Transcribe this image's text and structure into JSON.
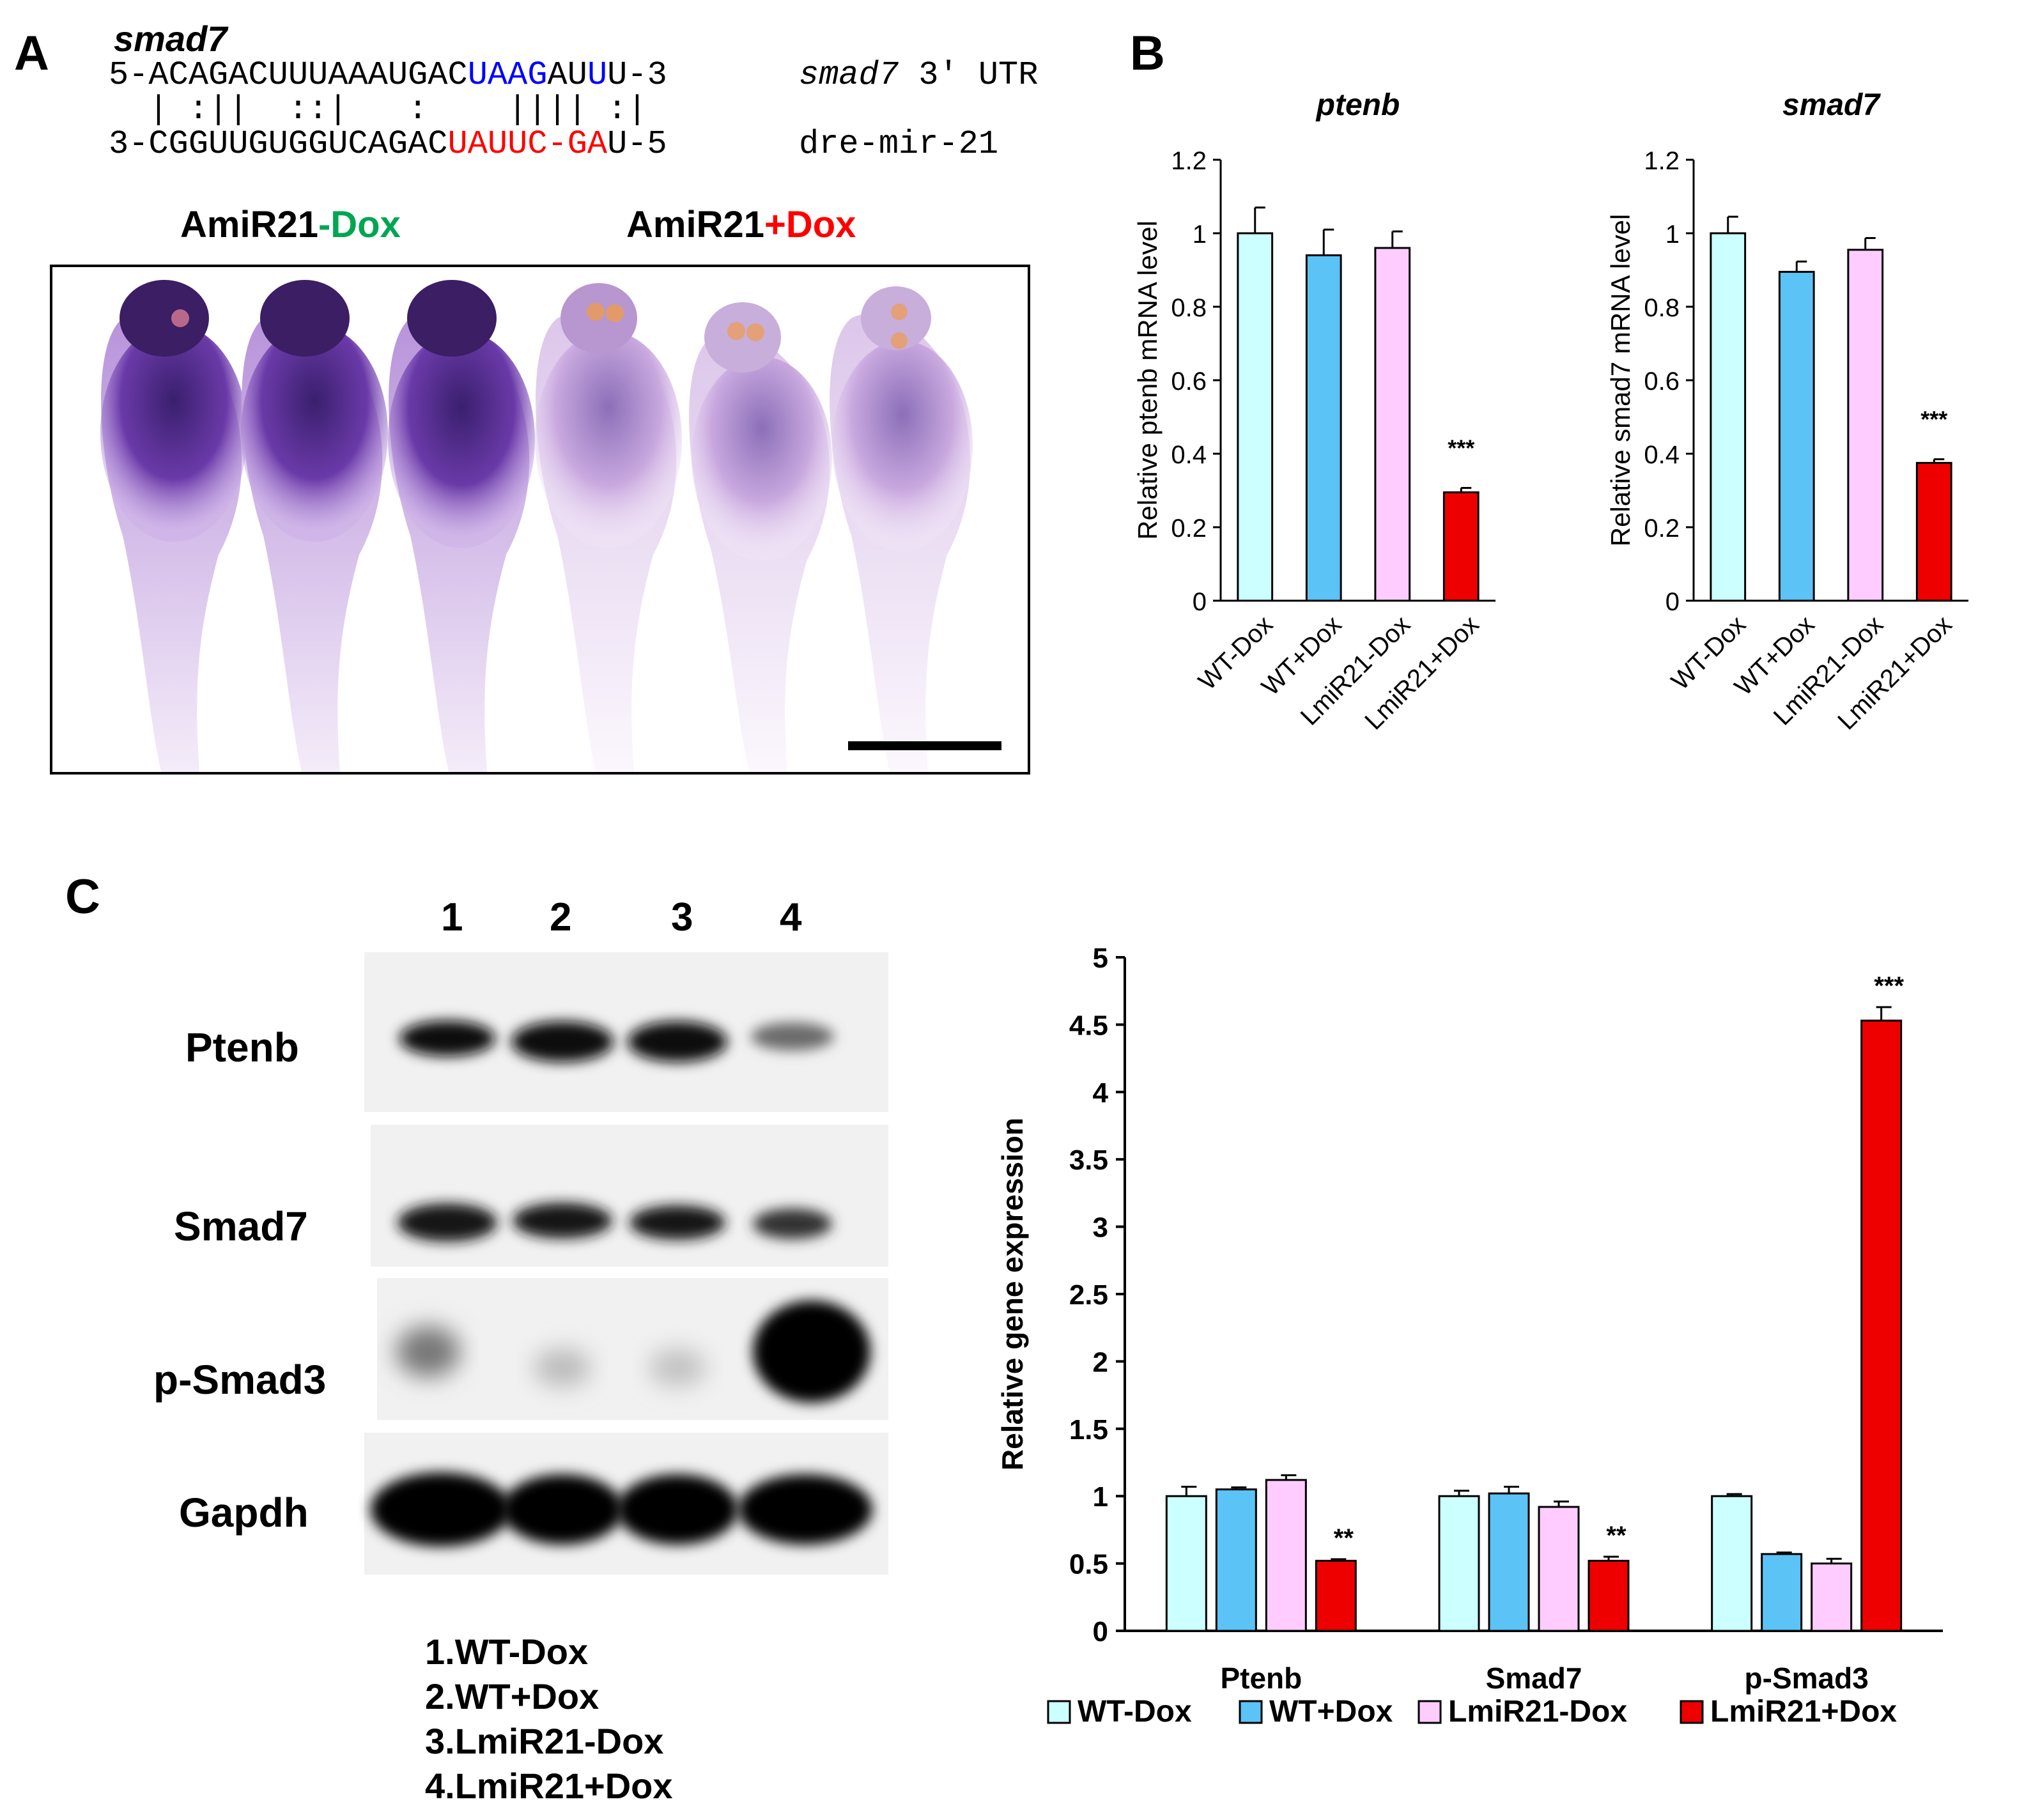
{
  "colors": {
    "wt_minus": "#ccffff",
    "wt_plus": "#5bc3f5",
    "lmir_minus": "#ffccff",
    "lmir_plus": "#ee0000",
    "target_blue": "#0000ff",
    "mir_red": "#ff0000",
    "minus_green": "#00a651"
  },
  "panelA": {
    "letter": "A",
    "gene_name": "smad7",
    "utr_seq": [
      "5-ACAGACUUUAAAUGAC",
      "UAAG",
      "AU",
      "U",
      "U-3"
    ],
    "utr_label_italic": "smad7",
    "utr_label_rest": " 3' UTR",
    "pairing": "  | :||  ::|   :    |||| :|",
    "mir_seq": [
      "3-CGGUUGUGGUCAGAC",
      "UAUUC-GA",
      "U-5"
    ],
    "mir_label": "dre-mir-21",
    "group_minus": [
      "AmiR21",
      "-Dox"
    ],
    "group_plus": [
      "AmiR21",
      "+Dox"
    ]
  },
  "panelB": {
    "letter": "B"
  },
  "panelC": {
    "letter": "C",
    "lane_numbers": [
      "1",
      "2",
      "3",
      "4"
    ],
    "blot_labels": [
      "Ptenb",
      "Smad7",
      "p-Smad3",
      "Gapdh"
    ],
    "lane_legend": [
      "1.WT-Dox",
      "2.WT+Dox",
      "3.LmiR21-Dox",
      "4.LmiR21+Dox"
    ]
  },
  "chart_data": [
    {
      "type": "bar",
      "title": "ptenb",
      "ylabel": "Relative ptenb mRNA level",
      "ylim": [
        0,
        1.2
      ],
      "yticks": [
        "0",
        "0.2",
        "0.4",
        "0.6",
        "0.8",
        "1",
        "1.2"
      ],
      "categories": [
        "WT-Dox",
        "WT+Dox",
        "LmiR21-Dox",
        "LmiR21+Dox"
      ],
      "values": [
        1.0,
        0.94,
        0.96,
        0.295
      ],
      "errors": [
        0.07,
        0.07,
        0.045,
        0.012
      ],
      "annotations": [
        "",
        "",
        "",
        "***"
      ]
    },
    {
      "type": "bar",
      "title": "smad7",
      "ylabel": "Relative smad7 mRNA level",
      "ylim": [
        0,
        1.2
      ],
      "yticks": [
        "0",
        "0.2",
        "0.4",
        "0.6",
        "0.8",
        "1",
        "1.2"
      ],
      "categories": [
        "WT-Dox",
        "WT+Dox",
        "LmiR21-Dox",
        "LmiR21+Dox"
      ],
      "values": [
        1.0,
        0.895,
        0.955,
        0.375
      ],
      "errors": [
        0.045,
        0.028,
        0.032,
        0.01
      ],
      "annotations": [
        "",
        "",
        "",
        "***"
      ]
    },
    {
      "type": "bar",
      "title": "",
      "ylabel": "Relative gene expression",
      "ylim": [
        0,
        5
      ],
      "yticks": [
        "0",
        "0.5",
        "1",
        "1.5",
        "2",
        "2.5",
        "3",
        "3.5",
        "4",
        "4.5",
        "5"
      ],
      "categories": [
        "Ptenb",
        "Smad7",
        "p-Smad3"
      ],
      "series": [
        {
          "name": "WT-Dox",
          "values": [
            1.0,
            1.0,
            1.0
          ],
          "errors": [
            0.07,
            0.04,
            0.015
          ]
        },
        {
          "name": "WT+Dox",
          "values": [
            1.05,
            1.02,
            0.57
          ],
          "errors": [
            0.015,
            0.05,
            0.012
          ]
        },
        {
          "name": "LmiR21-Dox",
          "values": [
            1.12,
            0.92,
            0.5
          ],
          "errors": [
            0.035,
            0.04,
            0.035
          ]
        },
        {
          "name": "LmiR21+Dox",
          "values": [
            0.52,
            0.52,
            4.53
          ],
          "errors": [
            0.012,
            0.03,
            0.1
          ]
        }
      ],
      "annotations": [
        "**",
        "**",
        "***"
      ],
      "legend": [
        "WT-Dox",
        "WT+Dox",
        "LmiR21-Dox",
        "LmiR21+Dox"
      ]
    }
  ]
}
